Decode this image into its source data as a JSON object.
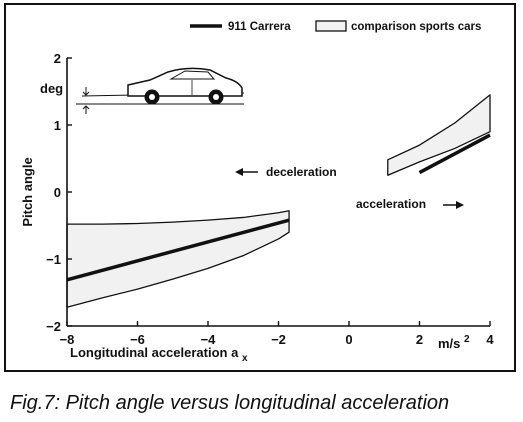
{
  "caption": "Fig.7: Pitch angle versus longitudinal acceleration",
  "chart_data": {
    "type": "line",
    "title": "",
    "xlabel": "Longitudinal acceleration a",
    "xlabel_subscript": "x",
    "ylabel": "Pitch angle",
    "x_unit": "m/s",
    "x_unit_exponent": "2",
    "y_unit": "deg",
    "xlim": [
      -8,
      4
    ],
    "ylim": [
      -2,
      2
    ],
    "x_ticks": [
      -8,
      -6,
      -4,
      -2,
      0,
      2,
      4
    ],
    "x_tick_labels": [
      "−8",
      "−6",
      "−4",
      "−2",
      "0",
      "2",
      "4"
    ],
    "y_ticks": [
      -2,
      -1,
      0,
      1,
      2
    ],
    "y_tick_labels": [
      "−2",
      "−1",
      "0",
      "1",
      "2"
    ],
    "grid": false,
    "legend_position": "top-right",
    "legend": [
      {
        "label": "911 Carrera",
        "kind": "line"
      },
      {
        "label": "comparison sports cars",
        "kind": "band"
      }
    ],
    "annotations": [
      {
        "text": "deceleration",
        "arrow": "left"
      },
      {
        "text": "acceleration",
        "arrow": "right"
      }
    ],
    "series": [
      {
        "name": "911 Carrera",
        "segments": [
          {
            "x": [
              -8,
              -1.7
            ],
            "y": [
              -1.31,
              -0.42
            ]
          },
          {
            "x": [
              2,
              4
            ],
            "y": [
              0.29,
              0.85
            ]
          }
        ]
      },
      {
        "name": "comparison sports cars",
        "bands": [
          {
            "x": [
              -8,
              -7,
              -6,
              -5,
              -4,
              -3,
              -2,
              -1.7
            ],
            "upper": [
              -0.48,
              -0.48,
              -0.47,
              -0.45,
              -0.42,
              -0.38,
              -0.31,
              -0.28
            ],
            "lower": [
              -1.72,
              -1.58,
              -1.45,
              -1.3,
              -1.14,
              -0.95,
              -0.7,
              -0.6
            ]
          },
          {
            "x": [
              1.1,
              2,
              3,
              4
            ],
            "upper": [
              0.48,
              0.7,
              1.03,
              1.45
            ],
            "lower": [
              0.25,
              0.45,
              0.65,
              0.9
            ]
          }
        ]
      }
    ],
    "colors": {
      "line": "#111111",
      "band_fill": "#f1f1f1"
    }
  }
}
